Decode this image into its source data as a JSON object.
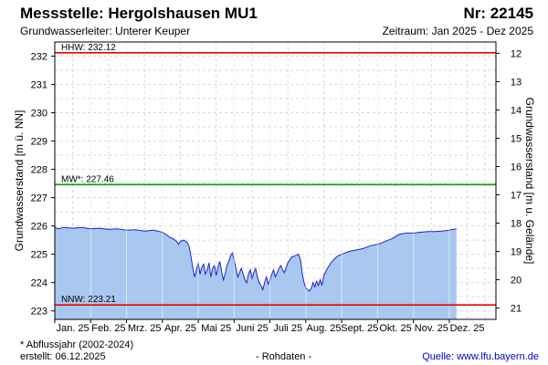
{
  "header": {
    "title": "Messstelle: Hergolshausen MU1",
    "number": "Nr: 22145",
    "aquifer": "Grundwasserleiter:   Unterer Keuper",
    "period": "Zeitraum: Jan 2025 - Dez 2025"
  },
  "footer": {
    "footnote": "* Abflussjahr (2002-2024)",
    "created": "erstellt:  06.12.2025",
    "raw": "- Rohdaten -",
    "source": "Quelle: www.lfu.bayern.de"
  },
  "colors": {
    "fill": "#a8c8f0",
    "line": "#2020cc",
    "hhw": "#ee0000",
    "nnw": "#ee0000",
    "mw": "#00aa00",
    "grid": "#d8d8d8"
  },
  "chart_data": {
    "type": "area",
    "ylabel": "Grundwasserstand [m ü. NN]",
    "y2label": "Grundwasserstand [m u. Gelände]",
    "ylim": [
      222.7,
      232.5
    ],
    "yticks": [
      223,
      224,
      225,
      226,
      227,
      228,
      229,
      230,
      231,
      232
    ],
    "y2ticks": [
      12,
      13,
      14,
      15,
      16,
      17,
      18,
      19,
      20,
      21
    ],
    "y2_offset": 244.1,
    "xlim": [
      0,
      12.3
    ],
    "month_labels": [
      "Jan. 25",
      "Feb. 25",
      "Mrz. 25",
      "Apr. 25",
      "Mai 25",
      "Juni 25",
      "Juli 25",
      "Aug. 25",
      "Sept. 25",
      "Okt. 25",
      "Nov. 25",
      "Dez. 25"
    ],
    "grid": true,
    "reference_lines": [
      {
        "name": "HHW",
        "label": "HHW: 232.12",
        "value": 232.12
      },
      {
        "name": "MW",
        "label": "MW*: 227.46",
        "value": 227.46
      },
      {
        "name": "NNW",
        "label": "NNW: 223.21",
        "value": 223.21
      }
    ],
    "series": [
      {
        "x": [
          0,
          0.1,
          0.25,
          0.5,
          0.75,
          1.0,
          1.25,
          1.5,
          1.75,
          2.0,
          2.25,
          2.5,
          2.75,
          3.0,
          3.1,
          3.2,
          3.3,
          3.4,
          3.45,
          3.5,
          3.6,
          3.7,
          3.75,
          3.8,
          3.85,
          3.9,
          3.95,
          4.0,
          4.05,
          4.1,
          4.15,
          4.2,
          4.25,
          4.3,
          4.35,
          4.4,
          4.45,
          4.5,
          4.55,
          4.6,
          4.65,
          4.7,
          4.75,
          4.8,
          4.85,
          4.9,
          4.95,
          5.0,
          5.05,
          5.1,
          5.15,
          5.2,
          5.25,
          5.3,
          5.35,
          5.4,
          5.45,
          5.5,
          5.55,
          5.6,
          5.65,
          5.7,
          5.75,
          5.8,
          5.85,
          5.9,
          5.95,
          6.0,
          6.05,
          6.1,
          6.15,
          6.2,
          6.25,
          6.3,
          6.35,
          6.4,
          6.5,
          6.6,
          6.7,
          6.8,
          6.85,
          6.9,
          6.95,
          7.0,
          7.05,
          7.1,
          7.15,
          7.2,
          7.25,
          7.3,
          7.35,
          7.4,
          7.45,
          7.5,
          7.6,
          7.7,
          7.8,
          7.9,
          8.0,
          8.2,
          8.4,
          8.6,
          8.8,
          9.0,
          9.2,
          9.4,
          9.6,
          9.8,
          10.0,
          10.2,
          10.4,
          10.6,
          10.8,
          11.0,
          11.2
        ],
        "y": [
          225.95,
          225.9,
          225.95,
          225.92,
          225.95,
          225.9,
          225.92,
          225.88,
          225.9,
          225.85,
          225.87,
          225.82,
          225.85,
          225.78,
          225.7,
          225.6,
          225.55,
          225.45,
          225.35,
          225.45,
          225.5,
          225.4,
          225.25,
          224.9,
          224.5,
          224.2,
          224.45,
          224.7,
          224.3,
          224.55,
          224.65,
          224.3,
          224.45,
          224.7,
          224.2,
          224.5,
          224.6,
          224.25,
          224.55,
          224.75,
          224.4,
          224.1,
          224.3,
          224.6,
          224.75,
          224.95,
          225.05,
          224.8,
          224.5,
          224.2,
          224.35,
          224.5,
          224.3,
          224.1,
          224.0,
          224.3,
          224.45,
          224.15,
          224.35,
          224.5,
          224.2,
          224.0,
          223.9,
          223.75,
          224.0,
          224.2,
          223.95,
          224.1,
          224.3,
          224.45,
          224.2,
          224.35,
          224.5,
          224.6,
          224.45,
          224.35,
          224.7,
          224.9,
          224.95,
          225.0,
          224.8,
          224.3,
          224.0,
          223.8,
          223.75,
          223.7,
          223.8,
          224.0,
          223.85,
          224.05,
          223.9,
          224.1,
          223.9,
          224.25,
          224.5,
          224.7,
          224.85,
          224.95,
          225.0,
          225.1,
          225.15,
          225.2,
          225.3,
          225.35,
          225.45,
          225.55,
          225.7,
          225.75,
          225.75,
          225.78,
          225.8,
          225.8,
          225.82,
          225.85,
          225.9
        ]
      }
    ]
  }
}
